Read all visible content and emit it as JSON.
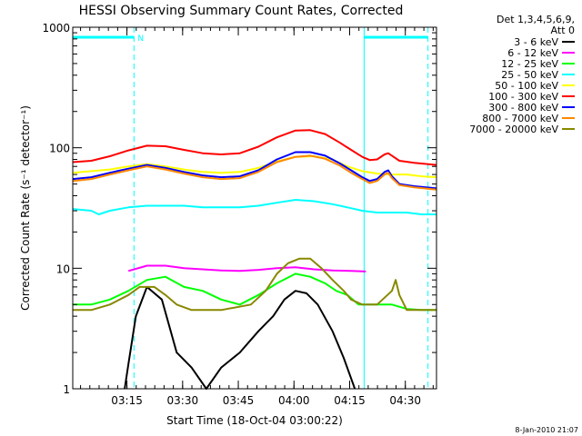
{
  "chart_data": {
    "type": "line",
    "title": "HESSI Observing Summary Count Rates, Corrected",
    "xlabel": "Start Time (18-Oct-04 03:00:22)",
    "ylabel": "Corrected Count Rate (s⁻¹ detector⁻¹)",
    "ylog": true,
    "ylim": [
      1,
      1000
    ],
    "xlim_minutes": [
      0,
      98
    ],
    "x_ticks": [
      {
        "label": "03:15",
        "t": 14.6
      },
      {
        "label": "03:30",
        "t": 29.6
      },
      {
        "label": "03:45",
        "t": 44.6
      },
      {
        "label": "04:00",
        "t": 59.6
      },
      {
        "label": "04:15",
        "t": 74.6
      },
      {
        "label": "04:30",
        "t": 89.6
      }
    ],
    "y_ticks": [
      {
        "label": "1",
        "v": 1
      },
      {
        "label": "10",
        "v": 10
      },
      {
        "label": "100",
        "v": 100
      },
      {
        "label": "1000",
        "v": 1000
      }
    ],
    "legend_header": [
      "Det 1,3,4,5,6,9,",
      "Att 0"
    ],
    "series": [
      {
        "name": "3 - 6 keV",
        "color": "#000000",
        "points": [
          [
            14,
            1
          ],
          [
            15,
            1.6
          ],
          [
            17,
            4
          ],
          [
            20,
            7
          ],
          [
            24,
            5.5
          ],
          [
            28,
            2
          ],
          [
            32,
            1.5
          ],
          [
            36,
            1
          ],
          [
            40,
            1.5
          ],
          [
            45,
            2
          ],
          [
            50,
            3
          ],
          [
            54,
            4
          ],
          [
            57,
            5.5
          ],
          [
            60,
            6.5
          ],
          [
            63,
            6.2
          ],
          [
            66,
            5
          ],
          [
            70,
            3
          ],
          [
            73,
            1.8
          ],
          [
            76,
            1
          ]
        ]
      },
      {
        "name": "6 - 12 keV",
        "color": "#ff00ff",
        "points": [
          [
            15,
            9.5
          ],
          [
            20,
            10.5
          ],
          [
            25,
            10.5
          ],
          [
            30,
            10
          ],
          [
            35,
            9.8
          ],
          [
            40,
            9.6
          ],
          [
            45,
            9.5
          ],
          [
            50,
            9.7
          ],
          [
            55,
            10
          ],
          [
            60,
            10.2
          ],
          [
            65,
            9.8
          ],
          [
            70,
            9.6
          ],
          [
            75,
            9.5
          ],
          [
            79,
            9.4
          ]
        ]
      },
      {
        "name": "12 - 25 keV",
        "color": "#00ff00",
        "points": [
          [
            0,
            5
          ],
          [
            5,
            5
          ],
          [
            10,
            5.5
          ],
          [
            15,
            6.5
          ],
          [
            20,
            8
          ],
          [
            25,
            8.5
          ],
          [
            30,
            7
          ],
          [
            35,
            6.5
          ],
          [
            40,
            5.5
          ],
          [
            45,
            5
          ],
          [
            50,
            6
          ],
          [
            55,
            7.5
          ],
          [
            60,
            9
          ],
          [
            64,
            8.5
          ],
          [
            68,
            7.5
          ],
          [
            71,
            6.5
          ],
          [
            74,
            6
          ],
          [
            77,
            5
          ],
          [
            82,
            5
          ],
          [
            86,
            5
          ],
          [
            90,
            4.6
          ],
          [
            94,
            4.5
          ],
          [
            98,
            4.5
          ]
        ]
      },
      {
        "name": "25 - 50 keV",
        "color": "#00ffff",
        "points": [
          [
            0,
            31
          ],
          [
            5,
            30
          ],
          [
            7,
            28
          ],
          [
            10,
            30
          ],
          [
            15,
            32
          ],
          [
            20,
            33
          ],
          [
            25,
            33
          ],
          [
            30,
            33
          ],
          [
            35,
            32
          ],
          [
            40,
            32
          ],
          [
            45,
            32
          ],
          [
            50,
            33
          ],
          [
            55,
            35
          ],
          [
            60,
            37
          ],
          [
            65,
            36
          ],
          [
            70,
            34
          ],
          [
            74,
            32
          ],
          [
            78,
            30
          ],
          [
            82,
            29
          ],
          [
            86,
            29
          ],
          [
            90,
            29
          ],
          [
            94,
            28
          ],
          [
            98,
            28
          ]
        ]
      },
      {
        "name": "50 - 100 keV",
        "color": "#ffff00",
        "points": [
          [
            0,
            62
          ],
          [
            5,
            64
          ],
          [
            10,
            66
          ],
          [
            15,
            70
          ],
          [
            20,
            73
          ],
          [
            25,
            70
          ],
          [
            30,
            66
          ],
          [
            35,
            63
          ],
          [
            40,
            62
          ],
          [
            45,
            63
          ],
          [
            50,
            68
          ],
          [
            55,
            77
          ],
          [
            60,
            84
          ],
          [
            65,
            85
          ],
          [
            70,
            80
          ],
          [
            74,
            70
          ],
          [
            78,
            64
          ],
          [
            82,
            61
          ],
          [
            86,
            60
          ],
          [
            90,
            60
          ],
          [
            94,
            58
          ],
          [
            98,
            57
          ]
        ]
      },
      {
        "name": "100 - 300 keV",
        "color": "#ff0000",
        "points": [
          [
            0,
            76
          ],
          [
            5,
            78
          ],
          [
            10,
            85
          ],
          [
            15,
            95
          ],
          [
            20,
            104
          ],
          [
            25,
            103
          ],
          [
            30,
            96
          ],
          [
            35,
            90
          ],
          [
            40,
            88
          ],
          [
            45,
            90
          ],
          [
            50,
            102
          ],
          [
            55,
            122
          ],
          [
            60,
            139
          ],
          [
            64,
            140
          ],
          [
            68,
            130
          ],
          [
            72,
            110
          ],
          [
            75,
            96
          ],
          [
            78,
            84
          ],
          [
            80,
            79
          ],
          [
            82,
            80
          ],
          [
            84,
            88
          ],
          [
            85,
            90
          ],
          [
            86,
            86
          ],
          [
            88,
            78
          ],
          [
            92,
            75
          ],
          [
            98,
            72
          ]
        ]
      },
      {
        "name": "300 - 800 keV",
        "color": "#0000ff",
        "points": [
          [
            0,
            55
          ],
          [
            5,
            57
          ],
          [
            10,
            62
          ],
          [
            15,
            67
          ],
          [
            20,
            72
          ],
          [
            25,
            68
          ],
          [
            30,
            63
          ],
          [
            35,
            59
          ],
          [
            40,
            57
          ],
          [
            45,
            58
          ],
          [
            50,
            65
          ],
          [
            55,
            80
          ],
          [
            60,
            92
          ],
          [
            64,
            92
          ],
          [
            68,
            86
          ],
          [
            72,
            74
          ],
          [
            75,
            65
          ],
          [
            78,
            57
          ],
          [
            80,
            53
          ],
          [
            82,
            55
          ],
          [
            84,
            63
          ],
          [
            85,
            65
          ],
          [
            86,
            58
          ],
          [
            88,
            50
          ],
          [
            92,
            48
          ],
          [
            98,
            46
          ]
        ]
      },
      {
        "name": "800 - 7000 keV",
        "color": "#ff8800",
        "points": [
          [
            0,
            53
          ],
          [
            5,
            55
          ],
          [
            10,
            60
          ],
          [
            15,
            65
          ],
          [
            20,
            70
          ],
          [
            25,
            66
          ],
          [
            30,
            61
          ],
          [
            35,
            57
          ],
          [
            40,
            55
          ],
          [
            45,
            56
          ],
          [
            50,
            63
          ],
          [
            55,
            76
          ],
          [
            60,
            84
          ],
          [
            64,
            86
          ],
          [
            68,
            81
          ],
          [
            72,
            71
          ],
          [
            75,
            62
          ],
          [
            78,
            55
          ],
          [
            80,
            51
          ],
          [
            82,
            53
          ],
          [
            84,
            60
          ],
          [
            85,
            62
          ],
          [
            86,
            56
          ],
          [
            88,
            49
          ],
          [
            92,
            47
          ],
          [
            98,
            45
          ]
        ]
      },
      {
        "name": "7000 - 20000 keV",
        "color": "#888800",
        "points": [
          [
            0,
            4.5
          ],
          [
            5,
            4.5
          ],
          [
            10,
            5
          ],
          [
            15,
            6
          ],
          [
            18,
            7
          ],
          [
            22,
            7
          ],
          [
            25,
            6
          ],
          [
            28,
            5
          ],
          [
            32,
            4.5
          ],
          [
            40,
            4.5
          ],
          [
            48,
            5
          ],
          [
            52,
            6.5
          ],
          [
            55,
            9
          ],
          [
            58,
            11
          ],
          [
            61,
            12
          ],
          [
            64,
            12
          ],
          [
            67,
            10
          ],
          [
            70,
            8
          ],
          [
            73,
            6.5
          ],
          [
            75,
            5.5
          ],
          [
            78,
            5
          ],
          [
            82,
            5
          ],
          [
            86,
            6.5
          ],
          [
            87,
            8
          ],
          [
            88,
            6
          ],
          [
            90,
            4.5
          ],
          [
            94,
            4.5
          ],
          [
            98,
            4.5
          ]
        ]
      }
    ],
    "night_markers": [
      {
        "label": "N",
        "t_start": 0,
        "t_end": 16.5
      },
      {
        "label": "",
        "t_start": 78.5,
        "t_end": 95.7
      }
    ]
  },
  "footer": {
    "timestamp": "8-Jan-2010 21:07"
  }
}
